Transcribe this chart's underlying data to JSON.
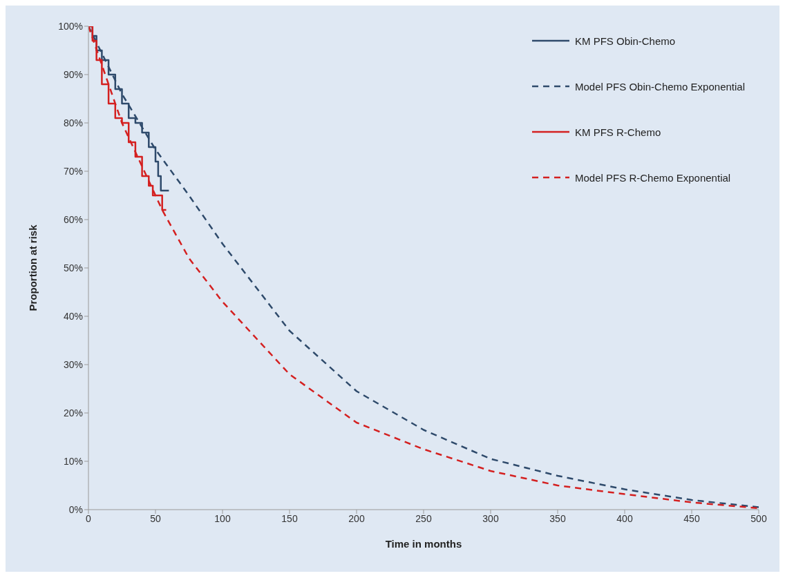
{
  "chart_data": {
    "type": "line",
    "xlabel": "Time in months",
    "ylabel": "Proportion at risk",
    "xlim": [
      0,
      500
    ],
    "xticks": [
      0,
      50,
      100,
      150,
      200,
      250,
      300,
      350,
      400,
      450,
      500
    ],
    "ylim": [
      0,
      100
    ],
    "yticks": [
      {
        "value": 0,
        "label": "0%"
      },
      {
        "value": 10,
        "label": "10%"
      },
      {
        "value": 20,
        "label": "20%"
      },
      {
        "value": 30,
        "label": "30%"
      },
      {
        "value": 40,
        "label": "40%"
      },
      {
        "value": 50,
        "label": "50%"
      },
      {
        "value": 60,
        "label": "60%"
      },
      {
        "value": 70,
        "label": "70%"
      },
      {
        "value": 80,
        "label": "80%"
      },
      {
        "value": 90,
        "label": "90%"
      },
      {
        "value": 100,
        "label": "100%"
      }
    ],
    "grid": false,
    "legend": "top right",
    "marker": "none",
    "series": [
      {
        "name": "KM PFS Obin-Chemo",
        "type": "step",
        "color": "#2e4a6b",
        "line_style": "solid",
        "x": [
          0,
          3,
          6,
          10,
          15,
          20,
          25,
          30,
          35,
          40,
          45,
          50,
          52,
          54,
          60
        ],
        "values": [
          100,
          98,
          95,
          93,
          90,
          87,
          84,
          81,
          80,
          78,
          75,
          72,
          69,
          66,
          66
        ]
      },
      {
        "name": "Model PFS Obin-Chemo Exponential",
        "color": "#2e4a6b",
        "line_style": "dashed",
        "x": [
          0,
          25,
          50,
          75,
          100,
          150,
          200,
          250,
          300,
          350,
          400,
          450,
          500
        ],
        "values": [
          100,
          86,
          74.5,
          65,
          55,
          37,
          24.5,
          16.5,
          10.5,
          7,
          4.2,
          2,
          0.5
        ]
      },
      {
        "name": "KM PFS R-Chemo",
        "type": "step",
        "color": "#d42020",
        "line_style": "solid",
        "x": [
          0,
          3,
          6,
          10,
          15,
          20,
          25,
          30,
          35,
          40,
          45,
          48,
          52,
          55,
          58
        ],
        "values": [
          100,
          97,
          93,
          88,
          84,
          81,
          80,
          76,
          73,
          69,
          67,
          65,
          65,
          62,
          62
        ]
      },
      {
        "name": "Model PFS R-Chemo Exponential",
        "color": "#d42020",
        "line_style": "dashed",
        "x": [
          0,
          25,
          50,
          55,
          75,
          100,
          150,
          200,
          250,
          300,
          350,
          400,
          450,
          500
        ],
        "values": [
          100,
          80,
          65,
          62,
          52,
          43,
          28,
          18,
          12.5,
          8,
          5,
          3.2,
          1.5,
          0.3
        ]
      }
    ]
  }
}
